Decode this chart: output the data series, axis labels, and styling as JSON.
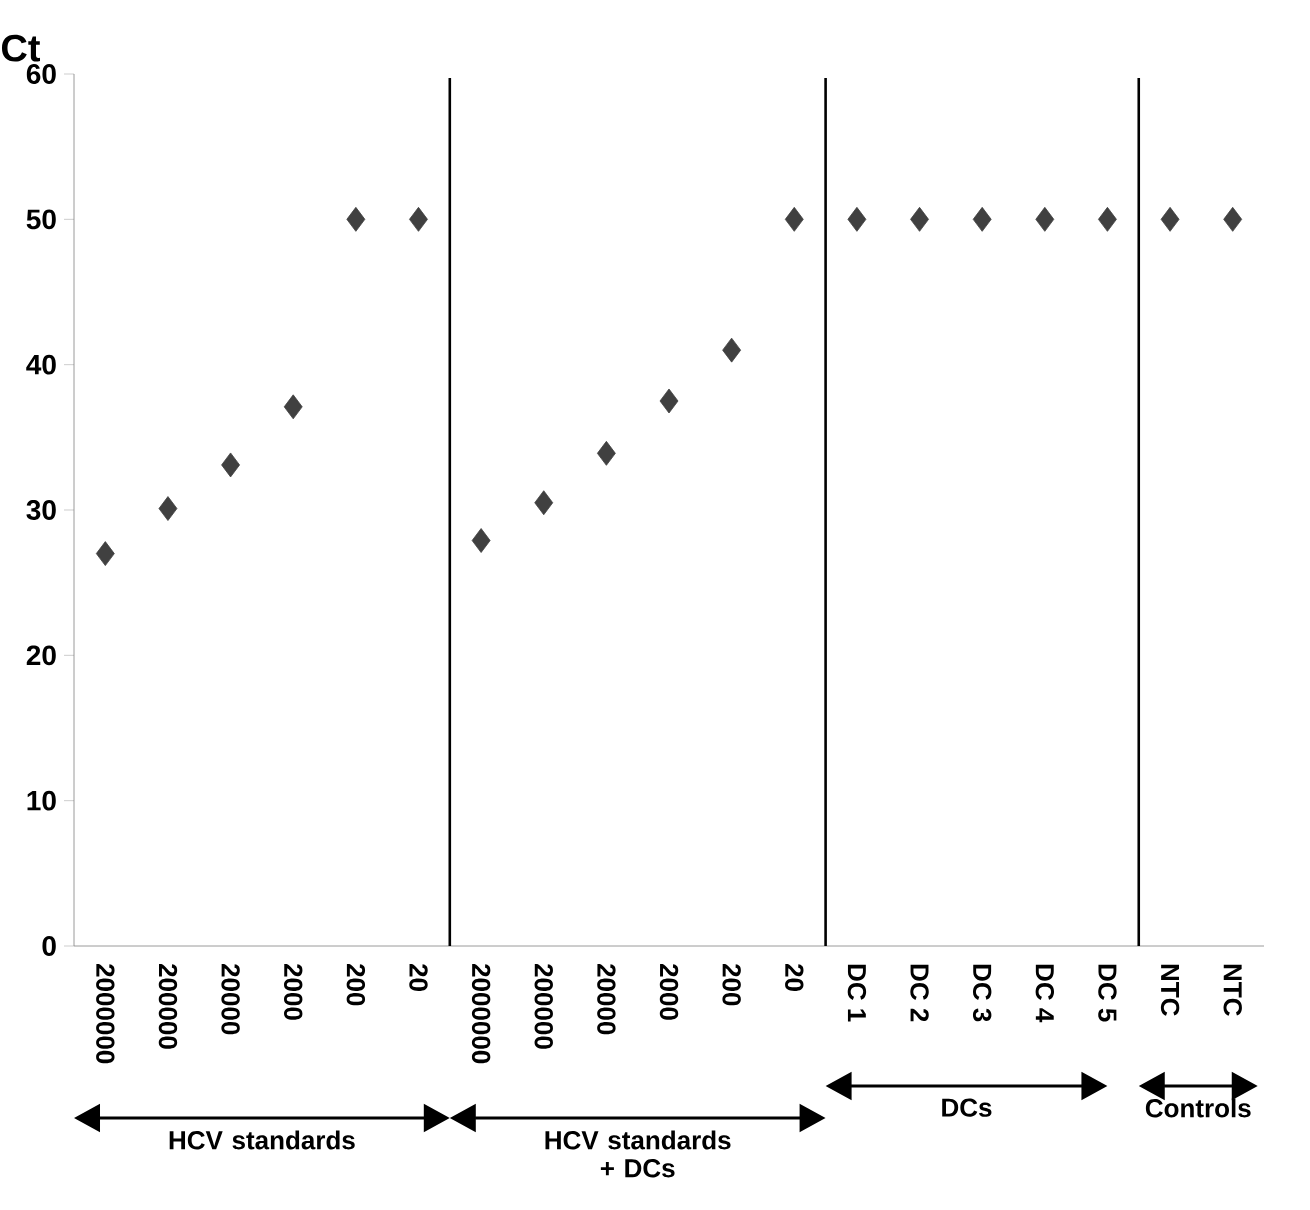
{
  "chart_data": {
    "type": "scatter",
    "ylabel": "Ct",
    "marker": "diamond",
    "categories": [
      "2000000",
      "200000",
      "20000",
      "2000",
      "200",
      "20",
      "2000000",
      "200000",
      "20000",
      "2000",
      "200",
      "20",
      "DC 1",
      "DC 2",
      "DC 3",
      "DC 4",
      "DC 5",
      "NTC",
      "NTC"
    ],
    "series": [
      {
        "color": "#404040",
        "values": [
          27.0,
          30.1,
          33.1,
          37.1,
          50,
          50,
          27.9,
          30.5,
          33.9,
          37.5,
          41.0,
          50,
          50,
          50,
          50,
          50,
          50,
          50,
          50
        ]
      }
    ],
    "ylim": [
      0,
      60
    ],
    "yticks": [
      0,
      10,
      20,
      30,
      40,
      50,
      60
    ],
    "annotations": [
      "HCV standards",
      "HCV standards + DCs",
      "DCs",
      "Controls"
    ]
  }
}
